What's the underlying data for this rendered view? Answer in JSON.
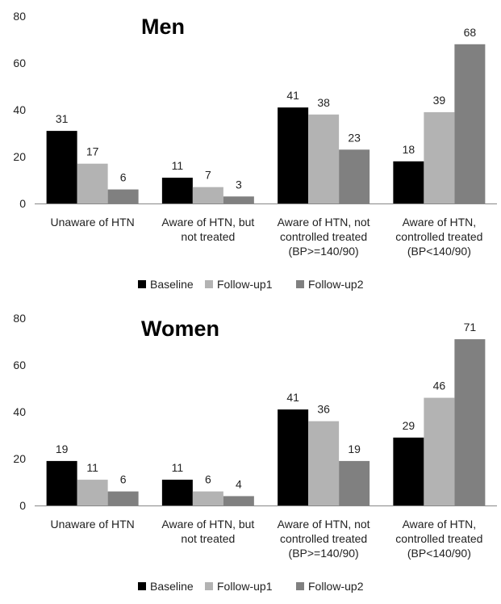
{
  "chart_data": [
    {
      "type": "bar",
      "title": "Men",
      "categories": [
        [
          "Unaware of HTN"
        ],
        [
          "Aware of HTN, but",
          "not treated"
        ],
        [
          "Aware of HTN, not",
          "controlled treated",
          "(BP>=140/90)"
        ],
        [
          "Aware of HTN,",
          "controlled treated",
          "(BP<140/90)"
        ]
      ],
      "series": [
        {
          "name": "Baseline",
          "color": "#000000",
          "values": [
            31,
            11,
            41,
            18
          ]
        },
        {
          "name": "Follow-up1",
          "color": "#b3b3b3",
          "values": [
            17,
            7,
            38,
            39
          ]
        },
        {
          "name": "Follow-up2",
          "color": "#808080",
          "values": [
            6,
            3,
            23,
            68
          ]
        }
      ],
      "ylim": [
        0,
        80
      ],
      "yticks": [
        0,
        20,
        40,
        60,
        80
      ],
      "grid": false,
      "legend": "bottom"
    },
    {
      "type": "bar",
      "title": "Women",
      "categories": [
        [
          "Unaware of HTN"
        ],
        [
          "Aware of HTN, but",
          "not treated"
        ],
        [
          "Aware of HTN, not",
          "controlled treated",
          "(BP>=140/90)"
        ],
        [
          "Aware of HTN,",
          "controlled treated",
          "(BP<140/90)"
        ]
      ],
      "series": [
        {
          "name": "Baseline",
          "color": "#000000",
          "values": [
            19,
            11,
            41,
            29
          ]
        },
        {
          "name": "Follow-up1",
          "color": "#b3b3b3",
          "values": [
            11,
            6,
            36,
            46
          ]
        },
        {
          "name": "Follow-up2",
          "color": "#808080",
          "values": [
            6,
            4,
            19,
            71
          ]
        }
      ],
      "ylim": [
        0,
        80
      ],
      "yticks": [
        0,
        20,
        40,
        60,
        80
      ],
      "grid": false,
      "legend": "bottom"
    }
  ]
}
